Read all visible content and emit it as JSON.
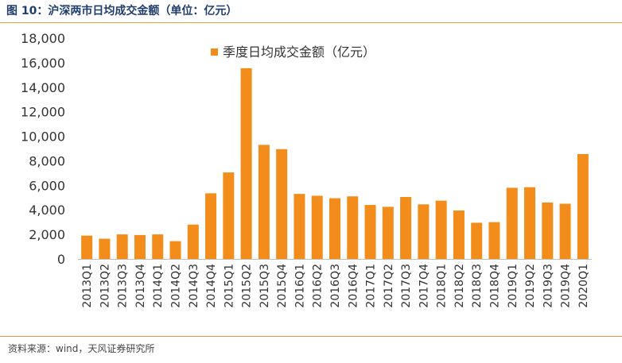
{
  "header": {
    "figure_title": "图 10：沪深两市日均成交金额（单位：亿元）"
  },
  "footer": {
    "source": "资料来源：wind，天风证券研究所"
  },
  "colors": {
    "bar": "#f28c1a",
    "title": "#1f3d6b",
    "rule": "#e8a33a"
  },
  "chart_data": {
    "type": "bar",
    "categories": [
      "2013Q1",
      "2013Q2",
      "2013Q3",
      "2013Q4",
      "2014Q1",
      "2014Q2",
      "2014Q3",
      "2014Q4",
      "2015Q1",
      "2015Q2",
      "2015Q3",
      "2015Q4",
      "2016Q1",
      "2016Q2",
      "2016Q3",
      "2016Q4",
      "2017Q1",
      "2017Q2",
      "2017Q3",
      "2017Q4",
      "2018Q1",
      "2018Q2",
      "2018Q3",
      "2018Q4",
      "2019Q1",
      "2019Q2",
      "2019Q3",
      "2019Q4",
      "2020Q1"
    ],
    "series": [
      {
        "name": "季度日均成交金额（亿元）",
        "values": [
          1900,
          1650,
          2000,
          1950,
          2000,
          1450,
          2800,
          5350,
          7050,
          15550,
          9300,
          8950,
          5300,
          5150,
          4950,
          5100,
          4400,
          4250,
          5050,
          4450,
          4750,
          3950,
          2950,
          3000,
          5800,
          5850,
          4600,
          4500,
          8550
        ]
      }
    ],
    "ylim": [
      0,
      18000
    ],
    "yticks": [
      "0",
      "2,000",
      "4,000",
      "6,000",
      "8,000",
      "10,000",
      "12,000",
      "14,000",
      "16,000",
      "18,000"
    ],
    "legend_position": "top-center",
    "grid": false
  }
}
